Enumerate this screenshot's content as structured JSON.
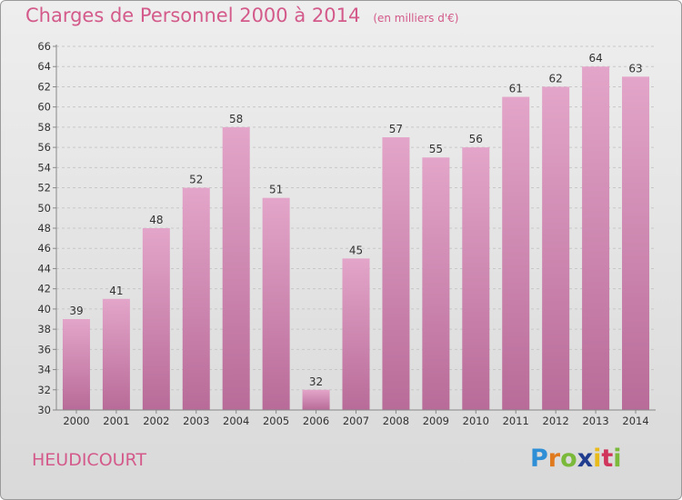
{
  "header": {
    "title": "Charges de Personnel 2000 à 2014",
    "unit": "(en milliers d'€)"
  },
  "footer": {
    "commune": "HEUDICOURT",
    "logo": "Proxiti"
  },
  "colors": {
    "bar_top": "#e3a5c9",
    "bar_bottom": "#b86b98",
    "accent": "#d35a8a"
  },
  "chart_data": {
    "type": "bar",
    "title": "Charges de Personnel 2000 à 2014",
    "subtitle": "(en milliers d'€)",
    "xlabel": "",
    "ylabel": "",
    "categories": [
      "2000",
      "2001",
      "2002",
      "2003",
      "2004",
      "2005",
      "2006",
      "2007",
      "2008",
      "2009",
      "2010",
      "2011",
      "2012",
      "2013",
      "2014"
    ],
    "values": [
      39,
      41,
      48,
      52,
      58,
      51,
      32,
      45,
      57,
      55,
      56,
      61,
      62,
      64,
      63
    ],
    "ylim": [
      30,
      66
    ],
    "yticks": [
      30,
      32,
      34,
      36,
      38,
      40,
      42,
      44,
      46,
      48,
      50,
      52,
      54,
      56,
      58,
      60,
      62,
      64,
      66
    ],
    "grid": true,
    "legend": "none",
    "data_labels": true
  }
}
